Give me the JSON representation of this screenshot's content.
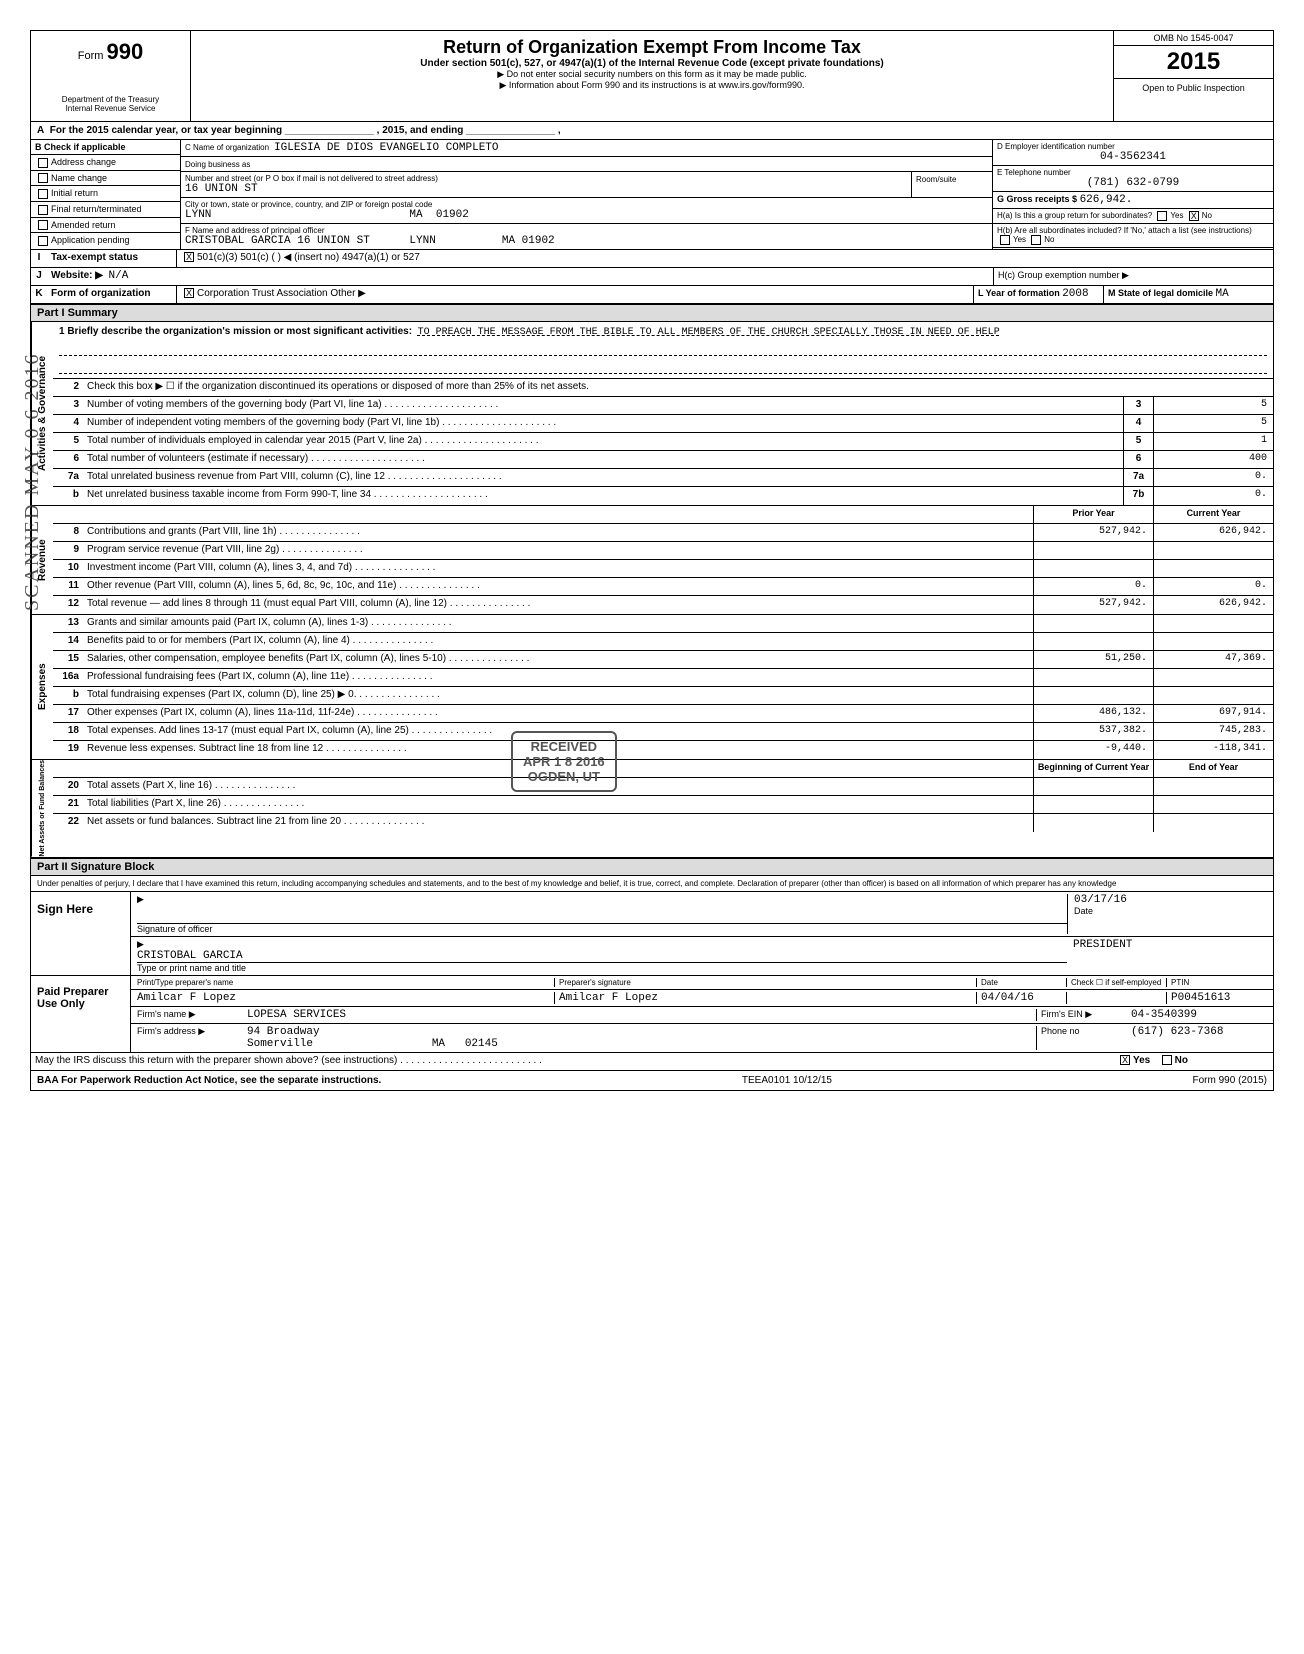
{
  "meta": {
    "form_number": "990",
    "omb_no": "OMB No 1545-0047",
    "year": "2015",
    "open_text": "Open to Public Inspection",
    "dept": "Department of the Treasury\nInternal Revenue Service",
    "title": "Return of Organization Exempt From Income Tax",
    "subtitle": "Under section 501(c), 527, or 4947(a)(1) of the Internal Revenue Code (except private foundations)",
    "instr1": "▶ Do not enter social security numbers on this form as it may be made public.",
    "instr2": "▶ Information about Form 990 and its instructions is at www.irs.gov/form990."
  },
  "lineA": "For the 2015 calendar year, or tax year beginning ________________ , 2015, and ending ________________ ,",
  "B": {
    "header": "Check if applicable",
    "items": [
      "Address change",
      "Name change",
      "Initial return",
      "Final return/terminated",
      "Amended return",
      "Application pending"
    ]
  },
  "C": {
    "name_lbl": "C  Name of organization",
    "name": "IGLESIA DE DIOS EVANGELIO COMPLETO",
    "dba_lbl": "Doing business as",
    "street_lbl": "Number and street (or P O box if mail is not delivered to street address)",
    "street": "16 UNION ST",
    "room_lbl": "Room/suite",
    "city_lbl": "City or town, state or province, country, and ZIP or foreign postal code",
    "city": "LYNN                              MA  01902"
  },
  "D": {
    "lbl": "D  Employer identification number",
    "val": "04-3562341"
  },
  "E": {
    "lbl": "E  Telephone number",
    "val": "(781) 632-0799"
  },
  "G": {
    "lbl": "G  Gross receipts $",
    "val": "626,942."
  },
  "F": {
    "lbl": "F  Name and address of principal officer",
    "val": "CRISTOBAL GARCIA 16 UNION ST      LYNN          MA 01902"
  },
  "H": {
    "a": "H(a) Is this a group return for subordinates?",
    "a_no": "X",
    "b": "H(b) Are all subordinates included?  If 'No,' attach a list (see instructions)",
    "c": "H(c) Group exemption number ▶"
  },
  "I": {
    "lbl": "Tax-exempt status",
    "c3": "X",
    "opts": "501(c)(3)    501(c) (      ) ◀ (insert no)    4947(a)(1) or    527"
  },
  "J": {
    "lbl": "Website: ▶",
    "val": "N/A"
  },
  "K": {
    "lbl": "Form of organization",
    "corp": "X",
    "opts": "Corporation   Trust   Association   Other ▶",
    "year_lbl": "L Year of formation",
    "year": "2008",
    "state_lbl": "M State of legal domicile",
    "state": "MA"
  },
  "part1_header": "Part I   Summary",
  "mission": {
    "q": "1   Briefly describe the organization's mission or most significant activities:",
    "text": "TO PREACH THE MESSAGE FROM THE BIBLE TO ALL MEMBERS OF THE CHURCH SPECIALLY THOSE IN NEED OF HELP"
  },
  "governance": {
    "label": "Activities & Governance",
    "line2": "Check this box ▶ ☐ if the organization discontinued its operations or disposed of more than 25% of its net assets.",
    "rows": [
      {
        "n": "3",
        "d": "Number of voting members of the governing body (Part VI, line 1a)",
        "box": "3",
        "v": "5"
      },
      {
        "n": "4",
        "d": "Number of independent voting members of the governing body (Part VI, line 1b)",
        "box": "4",
        "v": "5"
      },
      {
        "n": "5",
        "d": "Total number of individuals employed in calendar year 2015 (Part V, line 2a)",
        "box": "5",
        "v": "1"
      },
      {
        "n": "6",
        "d": "Total number of volunteers (estimate if necessary)",
        "box": "6",
        "v": "400"
      },
      {
        "n": "7a",
        "d": "Total unrelated business revenue from Part VIII, column (C), line 12",
        "box": "7a",
        "v": "0."
      },
      {
        "n": "b",
        "d": "Net unrelated business taxable income from Form 990-T, line 34",
        "box": "7b",
        "v": "0."
      }
    ]
  },
  "revenue": {
    "label": "Revenue",
    "head_prior": "Prior Year",
    "head_current": "Current Year",
    "rows": [
      {
        "n": "8",
        "d": "Contributions and grants (Part VIII, line 1h)",
        "p": "527,942.",
        "c": "626,942."
      },
      {
        "n": "9",
        "d": "Program service revenue (Part VIII, line 2g)",
        "p": "",
        "c": ""
      },
      {
        "n": "10",
        "d": "Investment income (Part VIII, column (A), lines 3, 4, and 7d)",
        "p": "",
        "c": ""
      },
      {
        "n": "11",
        "d": "Other revenue (Part VIII, column (A), lines 5, 6d, 8c, 9c, 10c, and 11e)",
        "p": "0.",
        "c": "0."
      },
      {
        "n": "12",
        "d": "Total revenue — add lines 8 through 11 (must equal Part VIII, column (A), line 12)",
        "p": "527,942.",
        "c": "626,942."
      }
    ]
  },
  "expenses": {
    "label": "Expenses",
    "rows": [
      {
        "n": "13",
        "d": "Grants and similar amounts paid (Part IX, column (A), lines 1-3)",
        "p": "",
        "c": ""
      },
      {
        "n": "14",
        "d": "Benefits paid to or for members (Part IX, column (A), line 4)",
        "p": "",
        "c": ""
      },
      {
        "n": "15",
        "d": "Salaries, other compensation, employee benefits (Part IX, column (A), lines 5-10)",
        "p": "51,250.",
        "c": "47,369."
      },
      {
        "n": "16a",
        "d": "Professional fundraising fees (Part IX, column (A), line 11e)",
        "p": "",
        "c": ""
      },
      {
        "n": "b",
        "d": "Total fundraising expenses (Part IX, column (D), line 25) ▶              0.",
        "p": "",
        "c": ""
      },
      {
        "n": "17",
        "d": "Other expenses (Part IX, column (A), lines 11a-11d, 11f-24e)",
        "p": "486,132.",
        "c": "697,914."
      },
      {
        "n": "18",
        "d": "Total expenses. Add lines 13-17 (must equal Part IX, column (A), line 25)",
        "p": "537,382.",
        "c": "745,283."
      },
      {
        "n": "19",
        "d": "Revenue less expenses. Subtract line 18 from line 12",
        "p": "-9,440.",
        "c": "-118,341."
      }
    ]
  },
  "netassets": {
    "label": "Net Assets or Fund Balances",
    "head_prior": "Beginning of Current Year",
    "head_current": "End of Year",
    "rows": [
      {
        "n": "20",
        "d": "Total assets (Part X, line 16)",
        "p": "",
        "c": ""
      },
      {
        "n": "21",
        "d": "Total liabilities (Part X, line 26)",
        "p": "",
        "c": ""
      },
      {
        "n": "22",
        "d": "Net assets or fund balances. Subtract line 21 from line 20",
        "p": "",
        "c": ""
      }
    ]
  },
  "part2_header": "Part II   Signature Block",
  "perjury": "Under penalties of perjury, I declare that I have examined this return, including accompanying schedules and statements, and to the best of my knowledge and belief, it is true, correct, and complete. Declaration of preparer (other than officer) is based on all information of which preparer has any knowledge",
  "sign": {
    "label": "Sign Here",
    "sig_lbl": "Signature of officer",
    "date_lbl": "Date",
    "date": "03/17/16",
    "name": "CRISTOBAL GARCIA",
    "title": "PRESIDENT",
    "name_lbl": "Type or print name and title"
  },
  "preparer": {
    "label": "Paid Preparer Use Only",
    "h1": "Print/Type preparer's name",
    "h2": "Preparer's signature",
    "h3": "Date",
    "h4": "Check ☐ if self-employed",
    "h5": "PTIN",
    "name": "Amilcar F Lopez",
    "sig": "Amilcar F Lopez",
    "date": "04/04/16",
    "ptin": "P00451613",
    "firm_lbl": "Firm's name ▶",
    "firm": "LOPESA SERVICES",
    "addr_lbl": "Firm's address ▶",
    "addr1": "94 Broadway",
    "addr2": "Somerville                  MA   02145",
    "ein_lbl": "Firm's EIN ▶",
    "ein": "04-3540399",
    "phone_lbl": "Phone no",
    "phone": "(617) 623-7368"
  },
  "discuss": {
    "q": "May the IRS discuss this return with the preparer shown above? (see instructions)",
    "yes": "X"
  },
  "footer": {
    "left": "BAA  For Paperwork Reduction Act Notice, see the separate instructions.",
    "mid": "TEEA0101  10/12/15",
    "right": "Form 990 (2015)"
  },
  "stamps": {
    "scanned": "SCANNED MAY 0 6 2016",
    "received": "RECEIVED\nAPR 1 8 2016\nOGDEN, UT"
  }
}
